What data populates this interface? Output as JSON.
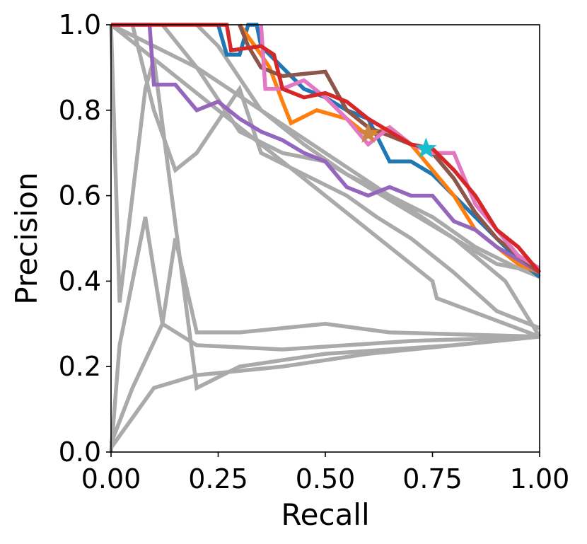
{
  "chart_data": {
    "type": "line",
    "title": "",
    "xlabel": "Recall",
    "ylabel": "Precision",
    "xlim": [
      0,
      1
    ],
    "ylim": [
      0,
      1
    ],
    "xticks": [
      "0.00",
      "0.25",
      "0.50",
      "0.75",
      "1.00"
    ],
    "yticks": [
      "0.0",
      "0.2",
      "0.4",
      "0.6",
      "0.8",
      "1.0"
    ],
    "grid": false,
    "legend": "none",
    "series": [
      {
        "color": "#aaaaaa",
        "values": [
          [
            0,
            1
          ],
          [
            0.02,
            0.35
          ],
          [
            0.05,
            0.6
          ],
          [
            0.08,
            0.85
          ],
          [
            0.1,
            0.92
          ],
          [
            0.2,
            0.15
          ],
          [
            0.3,
            0.2
          ],
          [
            0.5,
            0.23
          ],
          [
            0.8,
            0.25
          ],
          [
            1,
            0.27
          ]
        ]
      },
      {
        "color": "#aaaaaa",
        "values": [
          [
            0,
            1
          ],
          [
            0.2,
            0.9
          ],
          [
            0.5,
            0.7
          ],
          [
            0.8,
            0.5
          ],
          [
            0.92,
            0.4
          ],
          [
            1,
            0.27
          ]
        ]
      },
      {
        "color": "#aaaaaa",
        "values": [
          [
            0,
            1
          ],
          [
            0.75,
            0.4
          ],
          [
            0.76,
            0.36
          ],
          [
            1,
            0.27
          ]
        ]
      },
      {
        "color": "#aaaaaa",
        "values": [
          [
            0,
            0
          ],
          [
            0.02,
            0.25
          ],
          [
            0.08,
            0.55
          ],
          [
            0.12,
            0.3
          ],
          [
            0.15,
            0.5
          ],
          [
            0.2,
            0.28
          ],
          [
            0.3,
            0.28
          ],
          [
            0.5,
            0.3
          ],
          [
            0.65,
            0.28
          ],
          [
            1,
            0.27
          ]
        ]
      },
      {
        "color": "#aaaaaa",
        "values": [
          [
            0,
            0.01
          ],
          [
            0.1,
            0.15
          ],
          [
            0.2,
            0.18
          ],
          [
            0.4,
            0.2
          ],
          [
            0.6,
            0.23
          ],
          [
            1,
            0.27
          ]
        ]
      },
      {
        "color": "#aaaaaa",
        "values": [
          [
            0,
            0.02
          ],
          [
            0.05,
            0.15
          ],
          [
            0.12,
            0.3
          ],
          [
            0.2,
            0.25
          ],
          [
            0.4,
            0.24
          ],
          [
            0.7,
            0.26
          ],
          [
            1,
            0.27
          ]
        ]
      },
      {
        "color": "#aaaaaa",
        "values": [
          [
            0.05,
            1
          ],
          [
            0.1,
            0.8
          ],
          [
            0.15,
            0.66
          ],
          [
            0.2,
            0.7
          ],
          [
            0.3,
            0.85
          ],
          [
            0.35,
            0.7
          ],
          [
            0.45,
            0.65
          ],
          [
            0.55,
            0.6
          ],
          [
            0.62,
            0.55
          ],
          [
            0.7,
            0.5
          ],
          [
            0.8,
            0.42
          ],
          [
            0.9,
            0.33
          ],
          [
            1,
            0.29
          ]
        ]
      },
      {
        "color": "#aaaaaa",
        "values": [
          [
            0.12,
            1
          ],
          [
            0.2,
            0.9
          ],
          [
            0.3,
            0.75
          ],
          [
            0.4,
            0.7
          ],
          [
            0.5,
            0.68
          ],
          [
            0.6,
            0.62
          ],
          [
            0.7,
            0.56
          ],
          [
            0.8,
            0.5
          ],
          [
            0.9,
            0.44
          ],
          [
            1,
            0.42
          ]
        ]
      },
      {
        "color": "#aaaaaa",
        "values": [
          [
            0.2,
            1
          ],
          [
            0.25,
            0.95
          ],
          [
            0.35,
            0.8
          ],
          [
            0.45,
            0.72
          ],
          [
            0.55,
            0.65
          ],
          [
            0.65,
            0.6
          ],
          [
            0.75,
            0.55
          ],
          [
            0.85,
            0.48
          ],
          [
            0.95,
            0.43
          ],
          [
            1,
            0.41
          ]
        ]
      },
      {
        "color": "#1f77b4",
        "values": [
          [
            0.25,
            1
          ],
          [
            0.27,
            0.93
          ],
          [
            0.3,
            0.93
          ],
          [
            0.32,
            1
          ],
          [
            0.34,
            1
          ],
          [
            0.35,
            0.95
          ],
          [
            0.4,
            0.9
          ],
          [
            0.45,
            0.85
          ],
          [
            0.5,
            0.83
          ],
          [
            0.55,
            0.8
          ],
          [
            0.6,
            0.78
          ],
          [
            0.65,
            0.68
          ],
          [
            0.7,
            0.68
          ],
          [
            0.75,
            0.65
          ],
          [
            0.8,
            0.6
          ],
          [
            0.85,
            0.55
          ],
          [
            0.9,
            0.5
          ],
          [
            0.95,
            0.45
          ],
          [
            1,
            0.41
          ]
        ]
      },
      {
        "color": "#ff7f0e",
        "values": [
          [
            0.3,
            1
          ],
          [
            0.35,
            0.93
          ],
          [
            0.37,
            0.9
          ],
          [
            0.4,
            0.82
          ],
          [
            0.42,
            0.77
          ],
          [
            0.48,
            0.8
          ],
          [
            0.55,
            0.78
          ],
          [
            0.6,
            0.74
          ],
          [
            0.65,
            0.76
          ],
          [
            0.7,
            0.72
          ],
          [
            0.75,
            0.66
          ],
          [
            0.8,
            0.6
          ],
          [
            0.85,
            0.52
          ],
          [
            0.9,
            0.48
          ],
          [
            0.95,
            0.44
          ],
          [
            1,
            0.42
          ]
        ]
      },
      {
        "color": "#9467bd",
        "values": [
          [
            0,
            1
          ],
          [
            0.09,
            1
          ],
          [
            0.1,
            0.86
          ],
          [
            0.15,
            0.86
          ],
          [
            0.2,
            0.8
          ],
          [
            0.25,
            0.82
          ],
          [
            0.3,
            0.78
          ],
          [
            0.35,
            0.75
          ],
          [
            0.4,
            0.73
          ],
          [
            0.45,
            0.7
          ],
          [
            0.5,
            0.68
          ],
          [
            0.55,
            0.62
          ],
          [
            0.6,
            0.6
          ],
          [
            0.65,
            0.62
          ],
          [
            0.7,
            0.6
          ],
          [
            0.75,
            0.6
          ],
          [
            0.8,
            0.54
          ],
          [
            0.85,
            0.52
          ],
          [
            0.9,
            0.48
          ],
          [
            0.95,
            0.45
          ],
          [
            1,
            0.42
          ]
        ]
      },
      {
        "color": "#8c564b",
        "values": [
          [
            0.3,
            1
          ],
          [
            0.32,
            0.95
          ],
          [
            0.35,
            0.9
          ],
          [
            0.4,
            0.88
          ],
          [
            0.5,
            0.89
          ],
          [
            0.55,
            0.8
          ],
          [
            0.6,
            0.76
          ],
          [
            0.65,
            0.74
          ],
          [
            0.7,
            0.72
          ],
          [
            0.75,
            0.7
          ],
          [
            0.8,
            0.64
          ],
          [
            0.85,
            0.56
          ],
          [
            0.9,
            0.5
          ],
          [
            0.95,
            0.46
          ],
          [
            1,
            0.42
          ]
        ]
      },
      {
        "color": "#e377c2",
        "values": [
          [
            0.35,
            1
          ],
          [
            0.36,
            0.85
          ],
          [
            0.4,
            0.85
          ],
          [
            0.45,
            0.87
          ],
          [
            0.5,
            0.83
          ],
          [
            0.55,
            0.78
          ],
          [
            0.6,
            0.72
          ],
          [
            0.65,
            0.76
          ],
          [
            0.7,
            0.72
          ],
          [
            0.75,
            0.7
          ],
          [
            0.8,
            0.7
          ],
          [
            0.85,
            0.58
          ],
          [
            0.9,
            0.52
          ],
          [
            0.95,
            0.46
          ],
          [
            1,
            0.43
          ]
        ]
      },
      {
        "color": "#d62728",
        "values": [
          [
            0,
            1
          ],
          [
            0.27,
            1
          ],
          [
            0.28,
            0.94
          ],
          [
            0.35,
            0.95
          ],
          [
            0.38,
            0.93
          ],
          [
            0.4,
            0.85
          ],
          [
            0.45,
            0.83
          ],
          [
            0.5,
            0.84
          ],
          [
            0.55,
            0.82
          ],
          [
            0.6,
            0.78
          ],
          [
            0.65,
            0.75
          ],
          [
            0.7,
            0.72
          ],
          [
            0.75,
            0.71
          ],
          [
            0.8,
            0.66
          ],
          [
            0.85,
            0.6
          ],
          [
            0.9,
            0.52
          ],
          [
            0.95,
            0.48
          ],
          [
            1,
            0.42
          ]
        ]
      }
    ],
    "markers": [
      {
        "symbol": "star",
        "color": "#cd853f",
        "x": 0.6,
        "y": 0.745
      },
      {
        "symbol": "star",
        "color": "#17becf",
        "x": 0.735,
        "y": 0.71
      }
    ]
  }
}
